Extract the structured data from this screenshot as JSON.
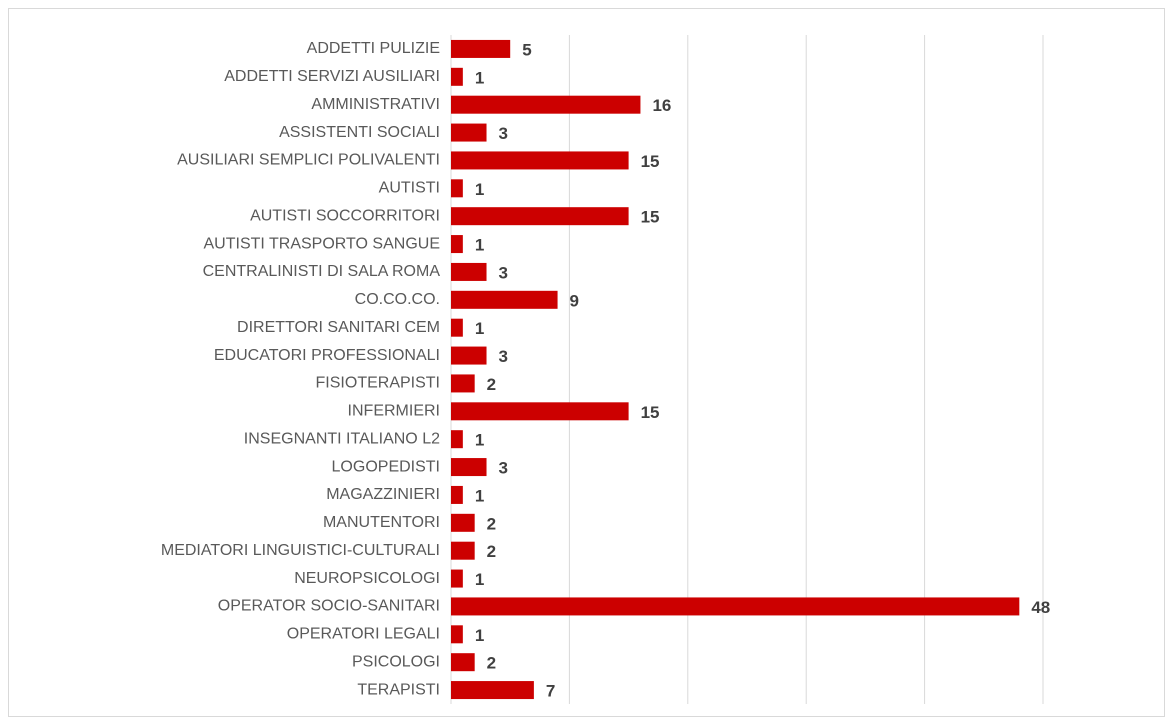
{
  "chart_data": {
    "type": "barh",
    "categories": [
      "ADDETTI PULIZIE",
      "ADDETTI SERVIZI AUSILIARI",
      "AMMINISTRATIVI",
      "ASSISTENTI SOCIALI",
      "AUSILIARI SEMPLICI POLIVALENTI",
      "AUTISTI",
      "AUTISTI SOCCORRITORI",
      "AUTISTI TRASPORTO SANGUE",
      "CENTRALINISTI DI SALA ROMA",
      "CO.CO.CO.",
      "DIRETTORI SANITARI CEM",
      "EDUCATORI PROFESSIONALI",
      "FISIOTERAPISTI",
      "INFERMIERI",
      "INSEGNANTI ITALIANO L2",
      "LOGOPEDISTI",
      "MAGAZZINIERI",
      "MANUTENTORI",
      "MEDIATORI LINGUISTICI-CULTURALI",
      "NEUROPSICOLOGI",
      "OPERATOR SOCIO-SANITARI",
      "OPERATORI LEGALI",
      "PSICOLOGI",
      "TERAPISTI"
    ],
    "values": [
      5,
      1,
      16,
      3,
      15,
      1,
      15,
      1,
      3,
      9,
      1,
      3,
      2,
      15,
      1,
      3,
      1,
      2,
      2,
      1,
      48,
      1,
      2,
      7
    ],
    "color": "#cc0000",
    "xlim": [
      0,
      50
    ],
    "xticks": [
      0,
      10,
      20,
      30,
      40,
      50
    ],
    "grid": true
  }
}
